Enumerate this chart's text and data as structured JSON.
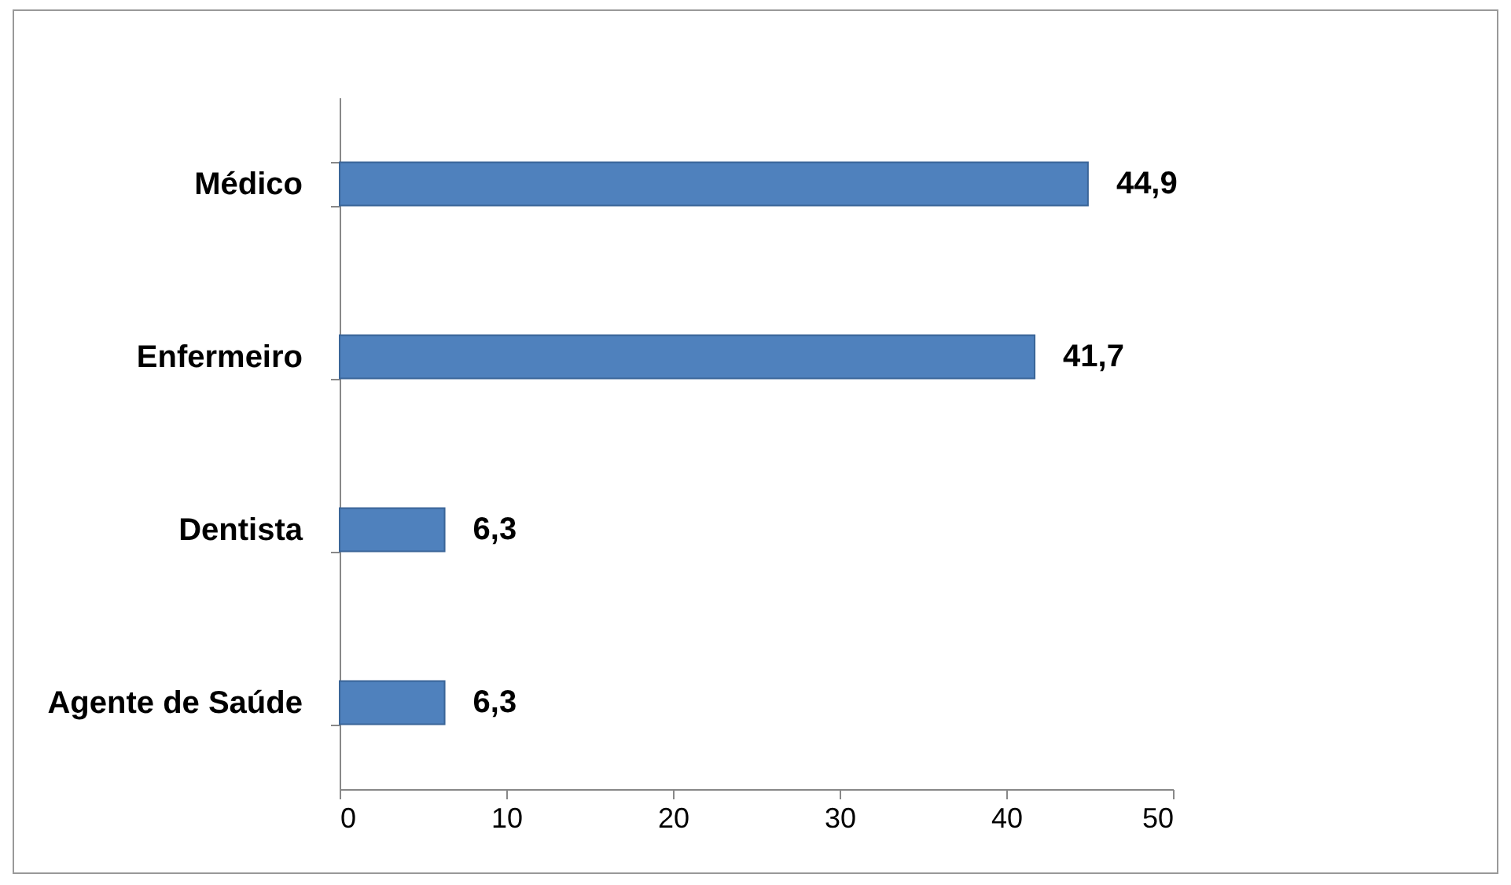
{
  "chart_data": {
    "type": "bar",
    "orientation": "horizontal",
    "categories": [
      "Médico",
      "Enfermeiro",
      "Dentista",
      "Agente de Saúde"
    ],
    "values": [
      44.9,
      41.7,
      6.3,
      6.3
    ],
    "value_labels": [
      "44,9",
      "41,7",
      "6,3",
      "6,3"
    ],
    "color": "#4f81bd",
    "xlim": [
      0,
      50
    ],
    "xticks": [
      0,
      10,
      20,
      30,
      40,
      50
    ]
  }
}
